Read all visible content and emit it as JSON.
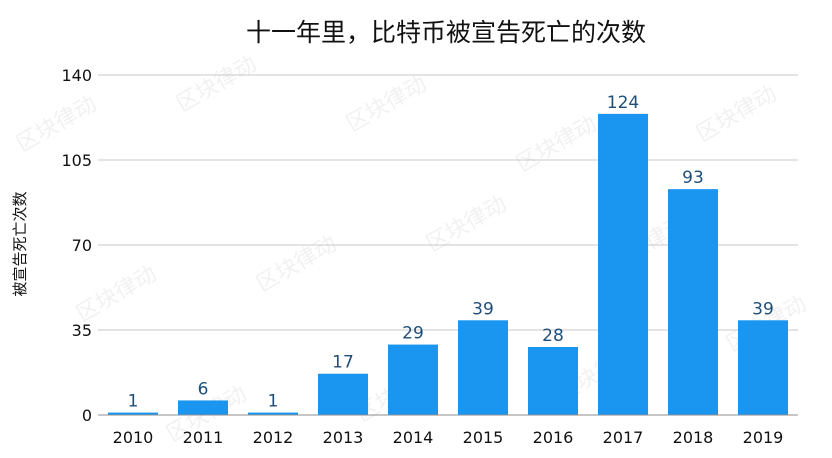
{
  "chart_data": {
    "type": "bar",
    "title": "十一年里，比特币被宣告死亡的次数",
    "xlabel": "",
    "ylabel": "被宣告死亡次数",
    "categories": [
      "2010",
      "2011",
      "2012",
      "2013",
      "2014",
      "2015",
      "2016",
      "2017",
      "2018",
      "2019"
    ],
    "values": [
      1,
      6,
      1,
      17,
      29,
      39,
      28,
      124,
      93,
      39
    ],
    "ylim": [
      0,
      140
    ],
    "yticks": [
      "0",
      "35",
      "70",
      "105",
      "140"
    ],
    "grid": true,
    "bar_color": "#1a96f0",
    "label_color": "#1f4e79"
  },
  "watermark": "区块律动"
}
